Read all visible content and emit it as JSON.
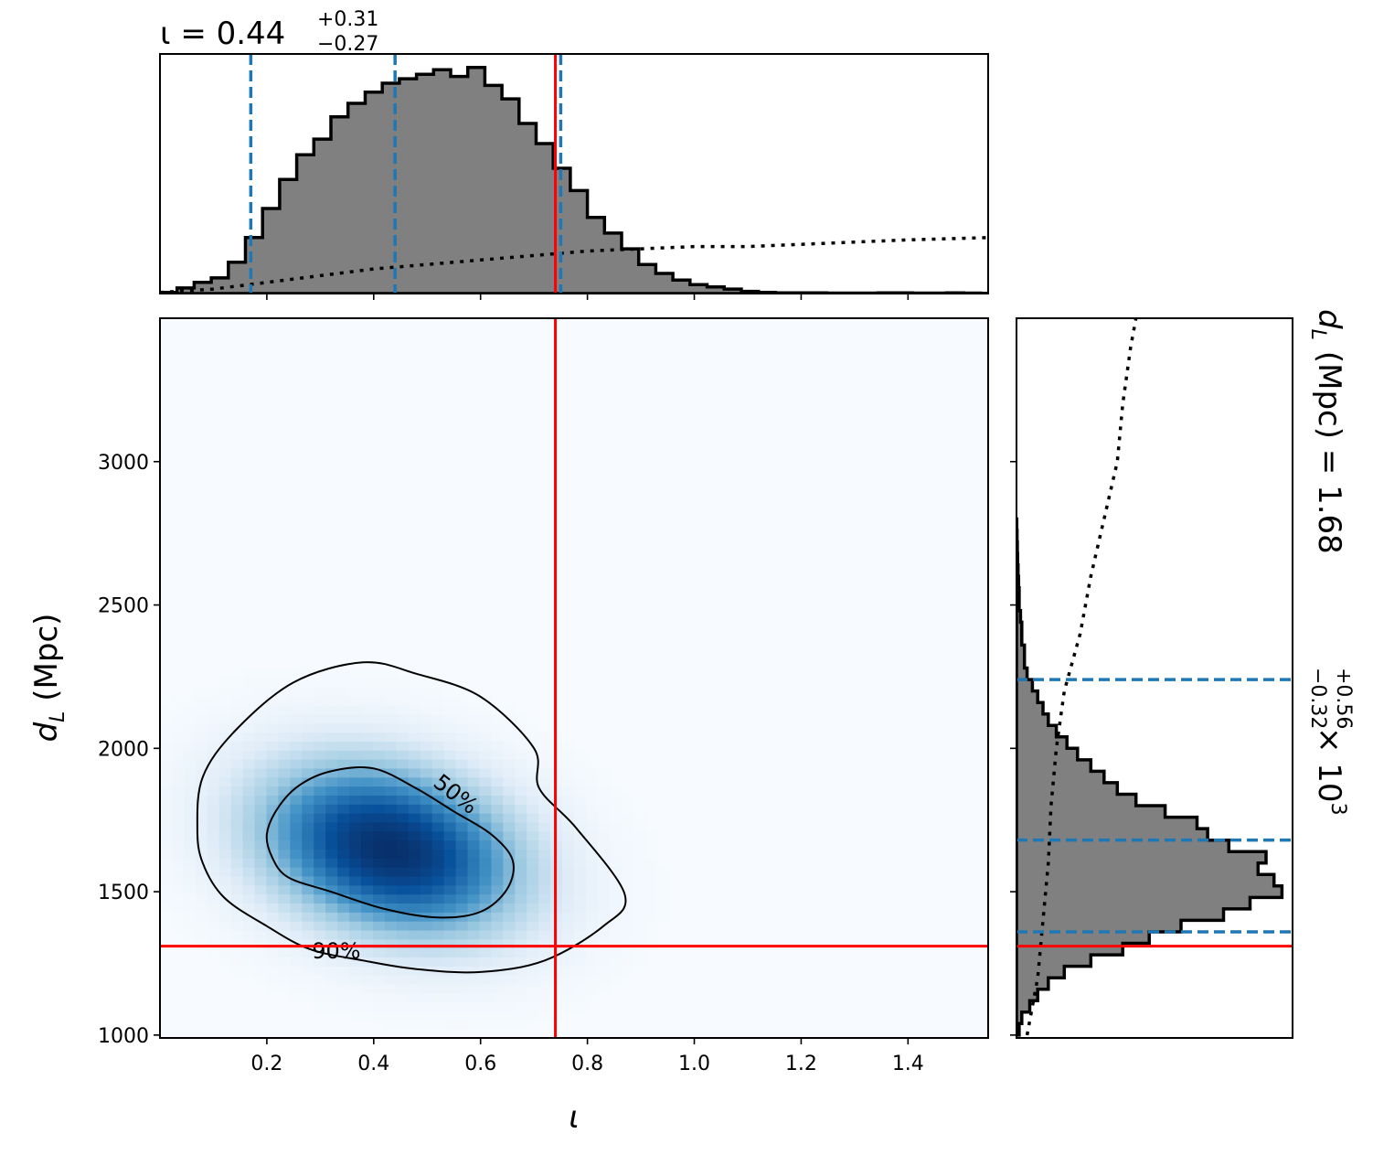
{
  "chart_data": {
    "type": "corner",
    "x_param": {
      "symbol": "ι",
      "xlim": [
        0.0,
        1.55
      ],
      "ticks": [
        0.2,
        0.4,
        0.6,
        0.8,
        1.0,
        1.2,
        1.4
      ],
      "tick_labels": [
        "0.2",
        "0.4",
        "0.6",
        "0.8",
        "1.0",
        "1.2",
        "1.4"
      ],
      "median": 0.44,
      "lower": 0.17,
      "upper": 0.75,
      "true_value": 0.74,
      "title_base": "ι = 0.44",
      "title_sup": "+0.31",
      "title_sub": "−0.27",
      "xlabel": "ι"
    },
    "y_param": {
      "ylim": [
        990,
        3500
      ],
      "ticks": [
        1000,
        1500,
        2000,
        2500,
        3000
      ],
      "tick_labels": [
        "1000",
        "1500",
        "2000",
        "2500",
        "3000"
      ],
      "median": 1680,
      "lower": 1360,
      "upper": 2240,
      "true_value": 1310,
      "ylabel_symbol": "d",
      "ylabel_sub": "L",
      "ylabel_unit": " (Mpc)",
      "title_base": "(Mpc) = 1.68",
      "title_sup": "+0.56",
      "title_sub": "−0.32",
      "title_tail": " × 10",
      "title_exp": "3"
    },
    "hist_x": {
      "bin_edges_start": 0.0,
      "bin_width": 0.032,
      "counts": [
        0.5,
        2.5,
        5,
        7,
        14,
        25,
        38,
        51,
        62,
        69,
        79,
        85,
        90,
        94,
        96,
        98,
        100,
        97,
        101,
        93,
        87,
        76,
        67,
        56,
        46,
        34,
        27,
        20,
        13,
        9,
        6,
        4,
        3,
        2,
        1,
        0.5,
        0.3,
        0.3,
        0.3,
        0.2,
        0.2,
        0.2,
        0.3,
        0.3,
        0.2,
        0.2,
        0.3,
        0.2,
        0.1
      ],
      "prior_x": [
        0.0,
        0.1,
        0.2,
        0.3,
        0.4,
        0.5,
        0.6,
        0.7,
        0.8,
        0.9,
        1.0,
        1.1,
        1.2,
        1.3,
        1.4,
        1.55
      ],
      "prior_counts": [
        0.5,
        2,
        5,
        8,
        11,
        13,
        15,
        17,
        19,
        20,
        21,
        21,
        22,
        23,
        24,
        25
      ]
    },
    "hist_y": {
      "bin_centers": [
        1020,
        1060,
        1100,
        1140,
        1180,
        1220,
        1260,
        1300,
        1340,
        1380,
        1420,
        1460,
        1500,
        1540,
        1580,
        1620,
        1660,
        1700,
        1740,
        1780,
        1820,
        1860,
        1900,
        1940,
        1980,
        2020,
        2060,
        2100,
        2140,
        2180,
        2220,
        2260,
        2300,
        2340,
        2380,
        2420,
        2460,
        2500,
        2540,
        2580,
        2620,
        2660,
        2700,
        2740,
        2780
      ],
      "counts": [
        1,
        2,
        5,
        8,
        12,
        18,
        28,
        40,
        50,
        62,
        78,
        88,
        100,
        97,
        91,
        94,
        80,
        72,
        68,
        56,
        45,
        38,
        33,
        28,
        23,
        19,
        15,
        12,
        10,
        8,
        6,
        4,
        3,
        3,
        2,
        2,
        1.5,
        1,
        1,
        0.8,
        0.6,
        0.4,
        0.3,
        0.2,
        0.1
      ],
      "prior_y": [
        1000,
        1200,
        1400,
        1600,
        1800,
        2000,
        2200,
        2400,
        2600,
        2800,
        3000,
        3200,
        3400,
        3500
      ],
      "prior_counts": [
        4,
        8,
        10,
        12,
        13,
        15,
        18,
        24,
        28,
        33,
        38,
        40,
        43,
        45
      ]
    },
    "density_2d": {
      "peak_x": 0.43,
      "peak_y": 1650,
      "sigma_x": 0.17,
      "sigma_y": 210,
      "correlation": -0.25
    },
    "contours": [
      {
        "label": "50%",
        "points": [
          [
            0.21,
            1620
          ],
          [
            0.2,
            1700
          ],
          [
            0.22,
            1790
          ],
          [
            0.26,
            1870
          ],
          [
            0.32,
            1920
          ],
          [
            0.4,
            1930
          ],
          [
            0.48,
            1860
          ],
          [
            0.55,
            1780
          ],
          [
            0.62,
            1700
          ],
          [
            0.66,
            1610
          ],
          [
            0.65,
            1510
          ],
          [
            0.6,
            1430
          ],
          [
            0.52,
            1410
          ],
          [
            0.42,
            1440
          ],
          [
            0.32,
            1500
          ],
          [
            0.24,
            1550
          ],
          [
            0.21,
            1620
          ]
        ]
      },
      {
        "label": "90%",
        "points": [
          [
            0.07,
            1720
          ],
          [
            0.08,
            1900
          ],
          [
            0.14,
            2060
          ],
          [
            0.25,
            2230
          ],
          [
            0.38,
            2300
          ],
          [
            0.48,
            2260
          ],
          [
            0.6,
            2180
          ],
          [
            0.7,
            2000
          ],
          [
            0.71,
            1860
          ],
          [
            0.78,
            1720
          ],
          [
            0.87,
            1490
          ],
          [
            0.83,
            1380
          ],
          [
            0.72,
            1260
          ],
          [
            0.6,
            1220
          ],
          [
            0.48,
            1230
          ],
          [
            0.38,
            1260
          ],
          [
            0.28,
            1300
          ],
          [
            0.2,
            1380
          ],
          [
            0.12,
            1480
          ],
          [
            0.08,
            1600
          ],
          [
            0.07,
            1720
          ]
        ]
      }
    ],
    "colors": {
      "hist_fill": "#808080",
      "hist_edge": "#000000",
      "quantile_line": "#1f77b4",
      "truth_line": "#ff0000",
      "density_low": "#f7fbff",
      "density_high": "#08306b"
    }
  }
}
